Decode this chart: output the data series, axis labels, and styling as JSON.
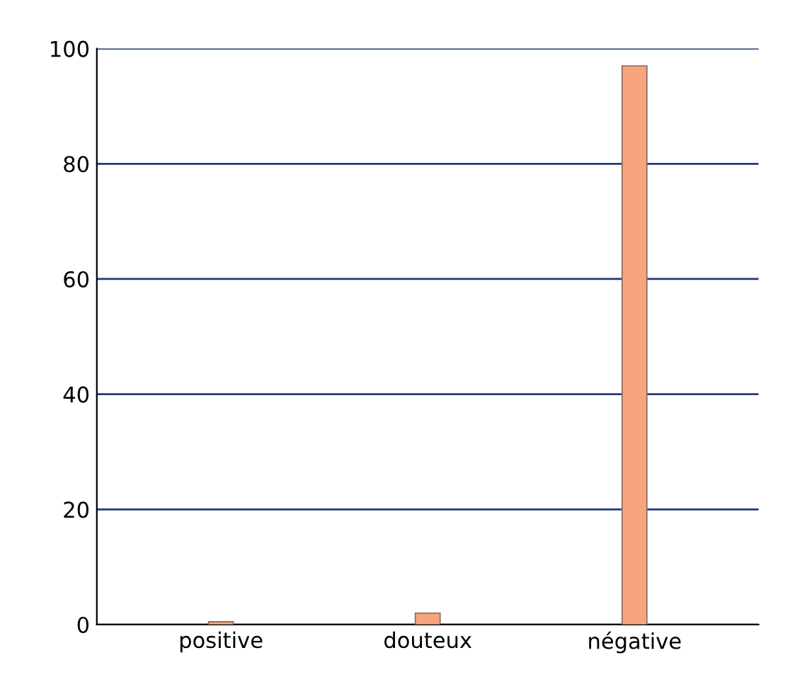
{
  "chart_data": {
    "type": "bar",
    "categories": [
      "positive",
      "douteux",
      "négative"
    ],
    "values": [
      0.5,
      2,
      97
    ],
    "color": "#f7a47f",
    "ylim": [
      0,
      100
    ],
    "yticks": [
      0,
      20,
      40,
      60,
      80,
      100
    ],
    "grid": "y"
  }
}
